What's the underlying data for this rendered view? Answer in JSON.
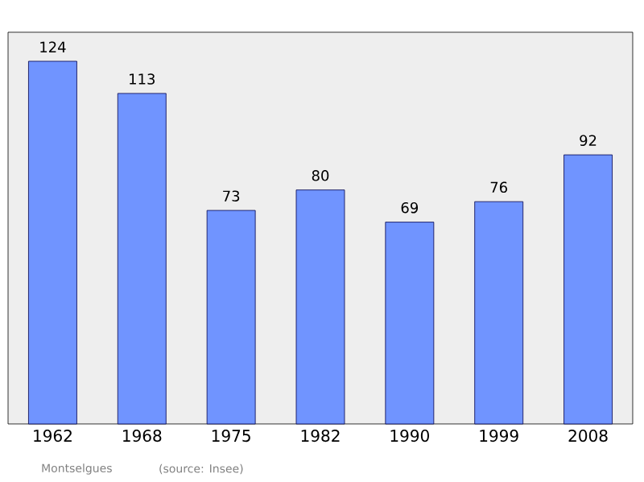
{
  "chart_data": {
    "type": "bar",
    "categories": [
      "1962",
      "1968",
      "1975",
      "1982",
      "1990",
      "1999",
      "2008"
    ],
    "values": [
      124,
      113,
      73,
      80,
      69,
      76,
      92
    ],
    "color": "#7094ff",
    "data_labels": true,
    "tick_labels": "x",
    "annotations": [
      "Montselgues",
      "(source: Insee)"
    ]
  }
}
